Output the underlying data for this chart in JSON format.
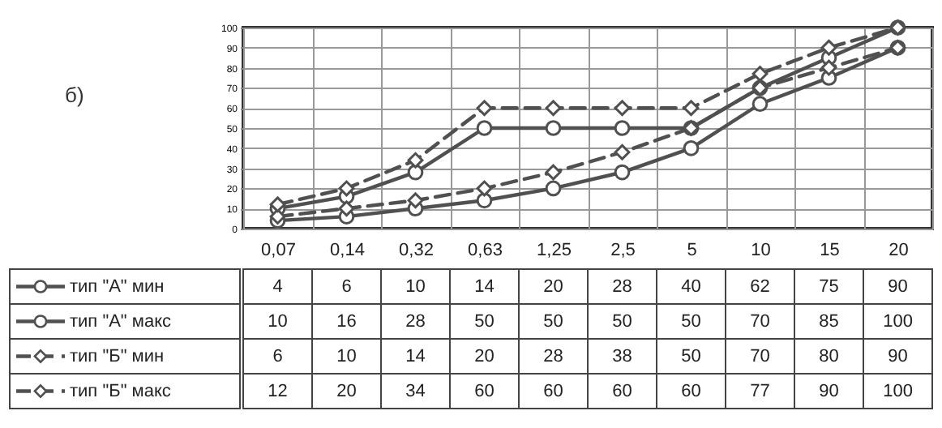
{
  "chart_data": {
    "type": "line",
    "annotations": [
      "б)"
    ],
    "categories": [
      "0,07",
      "0,14",
      "0,32",
      "0,63",
      "1,25",
      "2,5",
      "5",
      "10",
      "15",
      "20"
    ],
    "series": [
      {
        "name": "тип \"А\" мин",
        "color": "#505050",
        "marker": "circle",
        "line_style": "solid",
        "values": [
          4,
          6,
          10,
          14,
          20,
          28,
          40,
          62,
          75,
          90
        ]
      },
      {
        "name": "тип \"А\" макс",
        "color": "#505050",
        "marker": "circle",
        "line_style": "solid",
        "values": [
          10,
          16,
          28,
          50,
          50,
          50,
          50,
          70,
          85,
          100
        ]
      },
      {
        "name": "тип \"Б\" мин",
        "color": "#505050",
        "marker": "diamond",
        "line_style": "dashed",
        "values": [
          6,
          10,
          14,
          20,
          28,
          38,
          50,
          70,
          80,
          90
        ]
      },
      {
        "name": "тип \"Б\" макс",
        "color": "#505050",
        "marker": "diamond",
        "line_style": "dashed",
        "values": [
          12,
          20,
          34,
          60,
          60,
          60,
          60,
          77,
          90,
          100
        ]
      }
    ],
    "ylim": [
      0,
      100
    ],
    "yticks": [
      0,
      10,
      20,
      30,
      40,
      50,
      60,
      70,
      80,
      90,
      100
    ],
    "grid": true,
    "data_labels": true,
    "legend": "bottom left"
  }
}
